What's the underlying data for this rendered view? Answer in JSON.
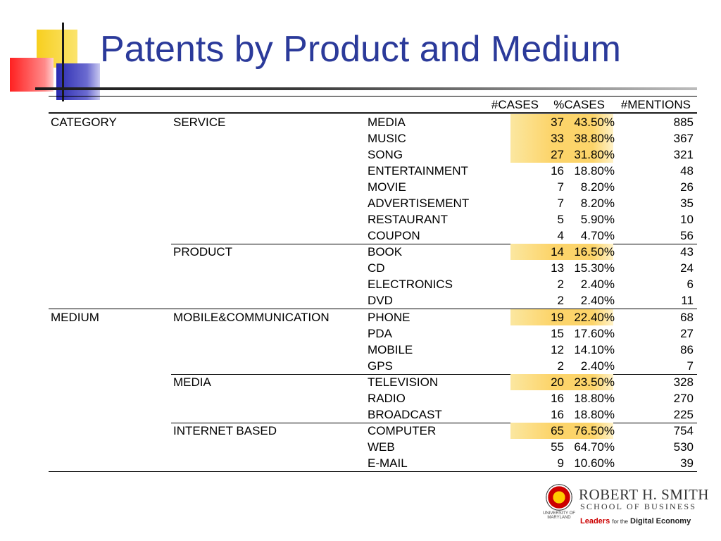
{
  "title": "Patents by Product and Medium",
  "columns": {
    "cases": "#CASES",
    "pct": "%CASES",
    "mentions": "#MENTIONS"
  },
  "rows": [
    {
      "category": "CATEGORY",
      "sub": "SERVICE",
      "item": "MEDIA",
      "cases": "37",
      "pct": "43.50%",
      "mentions": "885",
      "highlight": true,
      "sep": false
    },
    {
      "category": "",
      "sub": "",
      "item": "MUSIC",
      "cases": "33",
      "pct": "38.80%",
      "mentions": "367",
      "highlight": true,
      "sep": false
    },
    {
      "category": "",
      "sub": "",
      "item": "SONG",
      "cases": "27",
      "pct": "31.80%",
      "mentions": "321",
      "highlight": true,
      "sep": false
    },
    {
      "category": "",
      "sub": "",
      "item": "ENTERTAINMENT",
      "cases": "16",
      "pct": "18.80%",
      "mentions": "48",
      "highlight": false,
      "sep": false
    },
    {
      "category": "",
      "sub": "",
      "item": "MOVIE",
      "cases": "7",
      "pct": "8.20%",
      "mentions": "26",
      "highlight": false,
      "sep": false
    },
    {
      "category": "",
      "sub": "",
      "item": "ADVERTISEMENT",
      "cases": "7",
      "pct": "8.20%",
      "mentions": "35",
      "highlight": false,
      "sep": false
    },
    {
      "category": "",
      "sub": "",
      "item": "RESTAURANT",
      "cases": "5",
      "pct": "5.90%",
      "mentions": "10",
      "highlight": false,
      "sep": false
    },
    {
      "category": "",
      "sub": "",
      "item": "COUPON",
      "cases": "4",
      "pct": "4.70%",
      "mentions": "56",
      "highlight": false,
      "sep": false
    },
    {
      "category": "",
      "sub": "PRODUCT",
      "item": "BOOK",
      "cases": "14",
      "pct": "16.50%",
      "mentions": "43",
      "highlight": true,
      "sep": "sub"
    },
    {
      "category": "",
      "sub": "",
      "item": "CD",
      "cases": "13",
      "pct": "15.30%",
      "mentions": "24",
      "highlight": false,
      "sep": false
    },
    {
      "category": "",
      "sub": "",
      "item": "ELECTRONICS",
      "cases": "2",
      "pct": "2.40%",
      "mentions": "6",
      "highlight": false,
      "sep": false
    },
    {
      "category": "",
      "sub": "",
      "item": "DVD",
      "cases": "2",
      "pct": "2.40%",
      "mentions": "11",
      "highlight": false,
      "sep": false
    },
    {
      "category": "MEDIUM",
      "sub": "MOBILE&COMMUNICATION",
      "item": "PHONE",
      "cases": "19",
      "pct": "22.40%",
      "mentions": "68",
      "highlight": true,
      "sep": "full"
    },
    {
      "category": "",
      "sub": "",
      "item": "PDA",
      "cases": "15",
      "pct": "17.60%",
      "mentions": "27",
      "highlight": false,
      "sep": false
    },
    {
      "category": "",
      "sub": "",
      "item": "MOBILE",
      "cases": "12",
      "pct": "14.10%",
      "mentions": "86",
      "highlight": false,
      "sep": false
    },
    {
      "category": "",
      "sub": "",
      "item": "GPS",
      "cases": "2",
      "pct": "2.40%",
      "mentions": "7",
      "highlight": false,
      "sep": false
    },
    {
      "category": "",
      "sub": "MEDIA",
      "item": "TELEVISION",
      "cases": "20",
      "pct": "23.50%",
      "mentions": "328",
      "highlight": true,
      "sep": "sub"
    },
    {
      "category": "",
      "sub": "",
      "item": "RADIO",
      "cases": "16",
      "pct": "18.80%",
      "mentions": "270",
      "highlight": false,
      "sep": false
    },
    {
      "category": "",
      "sub": "",
      "item": "BROADCAST",
      "cases": "16",
      "pct": "18.80%",
      "mentions": "225",
      "highlight": false,
      "sep": false
    },
    {
      "category": "",
      "sub": "INTERNET BASED",
      "item": "COMPUTER",
      "cases": "65",
      "pct": "76.50%",
      "mentions": "754",
      "highlight": true,
      "sep": "sub"
    },
    {
      "category": "",
      "sub": "",
      "item": "WEB",
      "cases": "55",
      "pct": "64.70%",
      "mentions": "530",
      "highlight": false,
      "sep": false
    },
    {
      "category": "",
      "sub": "",
      "item": "E-MAIL",
      "cases": "9",
      "pct": "10.60%",
      "mentions": "39",
      "highlight": false,
      "sep": false
    }
  ],
  "logo": {
    "seal_text": "UNIVERSITY OF MARYLAND",
    "name": "ROBERT H. SMITH",
    "school": "SCHOOL OF BUSINESS",
    "tag_leaders": "Leaders",
    "tag_for": "for the",
    "tag_rest": "Digital Economy"
  },
  "colors": {
    "title": "#2b3a9a",
    "highlight": "#fcd46a"
  }
}
